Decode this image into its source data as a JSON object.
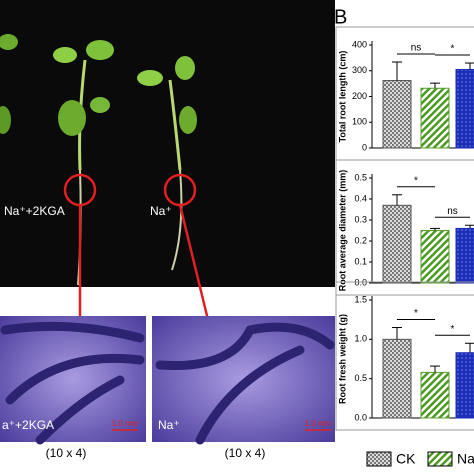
{
  "panel_label": "B",
  "photo_labels": {
    "top_left": "Na⁺+2KGA",
    "top_right": "Na⁺",
    "bottom_left": "a⁺+2KGA",
    "bottom_right": "Na⁺",
    "scale_left": "1.0 mm",
    "scale_right": "1.0 mm",
    "mag_left": "(10 x 4)",
    "mag_right": "(10 x 4)"
  },
  "legend": [
    "CK",
    "Na"
  ],
  "chart_data": [
    {
      "type": "bar",
      "y_label": "Total root length (cm)",
      "categories": [
        null,
        null,
        null
      ],
      "values": [
        262,
        232,
        305
      ],
      "errors": [
        72,
        20,
        25
      ],
      "colors": [
        "#cfcfcf",
        "#5aa02c",
        "#1c2fb5"
      ],
      "ylim": [
        0,
        400
      ],
      "yticks": [
        0,
        100,
        200,
        300,
        400
      ],
      "annotations": [
        "ns",
        "*"
      ]
    },
    {
      "type": "bar",
      "y_label": "Root average diameter (mm)",
      "categories": [
        null,
        null,
        null
      ],
      "values": [
        0.37,
        0.25,
        0.26
      ],
      "errors": [
        0.05,
        0.01,
        0.015
      ],
      "colors": [
        "#cfcfcf",
        "#5aa02c",
        "#1c2fb5"
      ],
      "ylim": [
        0,
        0.5
      ],
      "yticks": [
        {
          "value": 0,
          "label": "0.0"
        },
        0.1,
        0.2,
        0.3,
        0.4,
        0.5
      ],
      "annotations": [
        "*",
        "ns"
      ]
    },
    {
      "type": "bar",
      "y_label": "Root fresh weight (g)",
      "categories": [
        null,
        null,
        null
      ],
      "values": [
        1.0,
        0.58,
        0.83
      ],
      "errors": [
        0.15,
        0.08,
        0.12
      ],
      "colors": [
        "#cfcfcf",
        "#5aa02c",
        "#1c2fb5"
      ],
      "ylim": [
        0,
        1.5
      ],
      "yticks": [
        {
          "value": 0,
          "label": "0.0"
        },
        0.5,
        {
          "value": 1,
          "label": "1.0"
        },
        1.5
      ],
      "annotations": [
        "*",
        "*"
      ]
    }
  ]
}
